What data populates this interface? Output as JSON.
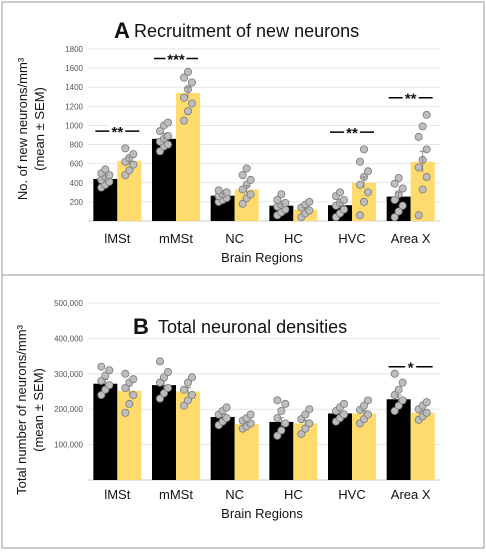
{
  "chart_data": [
    {
      "type": "bar",
      "panel_letter": "A",
      "title": "Recruitment of new neurons",
      "xlabel": "Brain Regions",
      "ylabel": "No. of new neurons/mm³",
      "ylabel2": "(mean ± SEM)",
      "categories": [
        "lMSt",
        "mMSt",
        "NC",
        "HC",
        "HVC",
        "Area X"
      ],
      "ylim": [
        0,
        1800
      ],
      "yticks": [
        0,
        200,
        400,
        600,
        800,
        1000,
        1200,
        1400,
        1600,
        1800
      ],
      "ytick_labels": [
        "",
        "200",
        "400",
        "600",
        "800",
        "1000",
        "1200",
        "1400",
        "1600",
        "1800"
      ],
      "series": [
        {
          "values": [
            440,
            860,
            265,
            160,
            165,
            255
          ],
          "sem": [
            40,
            55,
            25,
            20,
            30,
            45
          ],
          "color": "#000000",
          "points": [
            [
              350,
              380,
              410,
              430,
              460,
              480,
              500,
              540
            ],
            [
              730,
              780,
              800,
              830,
              860,
              890,
              940,
              1000,
              1030
            ],
            [
              200,
              220,
              240,
              260,
              280,
              300,
              320
            ],
            [
              60,
              90,
              120,
              150,
              170,
              190,
              220,
              280
            ],
            [
              40,
              80,
              120,
              160,
              190,
              220,
              260,
              300
            ],
            [
              40,
              100,
              160,
              220,
              280,
              340,
              390,
              450
            ]
          ]
        },
        {
          "values": [
            630,
            1340,
            330,
            120,
            400,
            620
          ],
          "sem": [
            40,
            60,
            40,
            20,
            60,
            110
          ],
          "color": "#FFDB6E",
          "points": [
            [
              480,
              530,
              590,
              620,
              660,
              700,
              760
            ],
            [
              1050,
              1150,
              1230,
              1290,
              1380,
              1450,
              1500,
              1560
            ],
            [
              180,
              240,
              280,
              330,
              380,
              430,
              480,
              550
            ],
            [
              40,
              80,
              110,
              140,
              170,
              200
            ],
            [
              60,
              200,
              300,
              380,
              460,
              520,
              620,
              750
            ],
            [
              60,
              330,
              460,
              560,
              640,
              750,
              880,
              990,
              1110
            ]
          ]
        }
      ],
      "significance": [
        {
          "category": "lMSt",
          "label": "**"
        },
        {
          "category": "mMSt",
          "label": "***"
        },
        {
          "category": "HVC",
          "label": "**"
        },
        {
          "category": "Area X",
          "label": "**"
        }
      ]
    },
    {
      "type": "bar",
      "panel_letter": "B",
      "title": "Total neuronal densities",
      "xlabel": "Brain Regions",
      "ylabel": "Total number of neurons/mm³",
      "ylabel2": "(mean ± SEM)",
      "categories": [
        "lMSt",
        "mMSt",
        "NC",
        "HC",
        "HVC",
        "Area X"
      ],
      "ylim": [
        0,
        500000
      ],
      "yticks": [
        0,
        100000,
        200000,
        300000,
        400000,
        500000
      ],
      "ytick_labels": [
        "",
        "100,000",
        "200,000",
        "300,000",
        "400,000",
        "500,000"
      ],
      "series": [
        {
          "values": [
            272000,
            268000,
            178000,
            164000,
            188000,
            228000
          ],
          "sem": [
            12000,
            13000,
            9000,
            12000,
            9000,
            12000
          ],
          "color": "#000000",
          "points": [
            [
              240000,
              255000,
              268000,
              280000,
              295000,
              310000,
              320000
            ],
            [
              230000,
              245000,
              260000,
              275000,
              290000,
              305000,
              335000
            ],
            [
              155000,
              165000,
              175000,
              185000,
              195000,
              205000
            ],
            [
              125000,
              140000,
              160000,
              175000,
              195000,
              215000,
              225000
            ],
            [
              165000,
              175000,
              185000,
              195000,
              205000,
              215000
            ],
            [
              195000,
              210000,
              225000,
              240000,
              255000,
              275000,
              300000
            ]
          ]
        },
        {
          "values": [
            252000,
            250000,
            158000,
            160000,
            188000,
            190000
          ],
          "sem": [
            14000,
            11000,
            5000,
            9000,
            8000,
            6000
          ],
          "color": "#FFDB6E",
          "points": [
            [
              190000,
              215000,
              240000,
              260000,
              275000,
              285000,
              300000
            ],
            [
              210000,
              225000,
              240000,
              255000,
              275000,
              290000
            ],
            [
              145000,
              152000,
              160000,
              168000,
              175000,
              185000
            ],
            [
              130000,
              145000,
              160000,
              172000,
              185000,
              200000
            ],
            [
              160000,
              172000,
              185000,
              198000,
              210000,
              225000
            ],
            [
              170000,
              180000,
              190000,
              200000,
              210000,
              220000
            ]
          ]
        }
      ],
      "significance": [
        {
          "category": "Area X",
          "label": "*"
        }
      ]
    }
  ]
}
